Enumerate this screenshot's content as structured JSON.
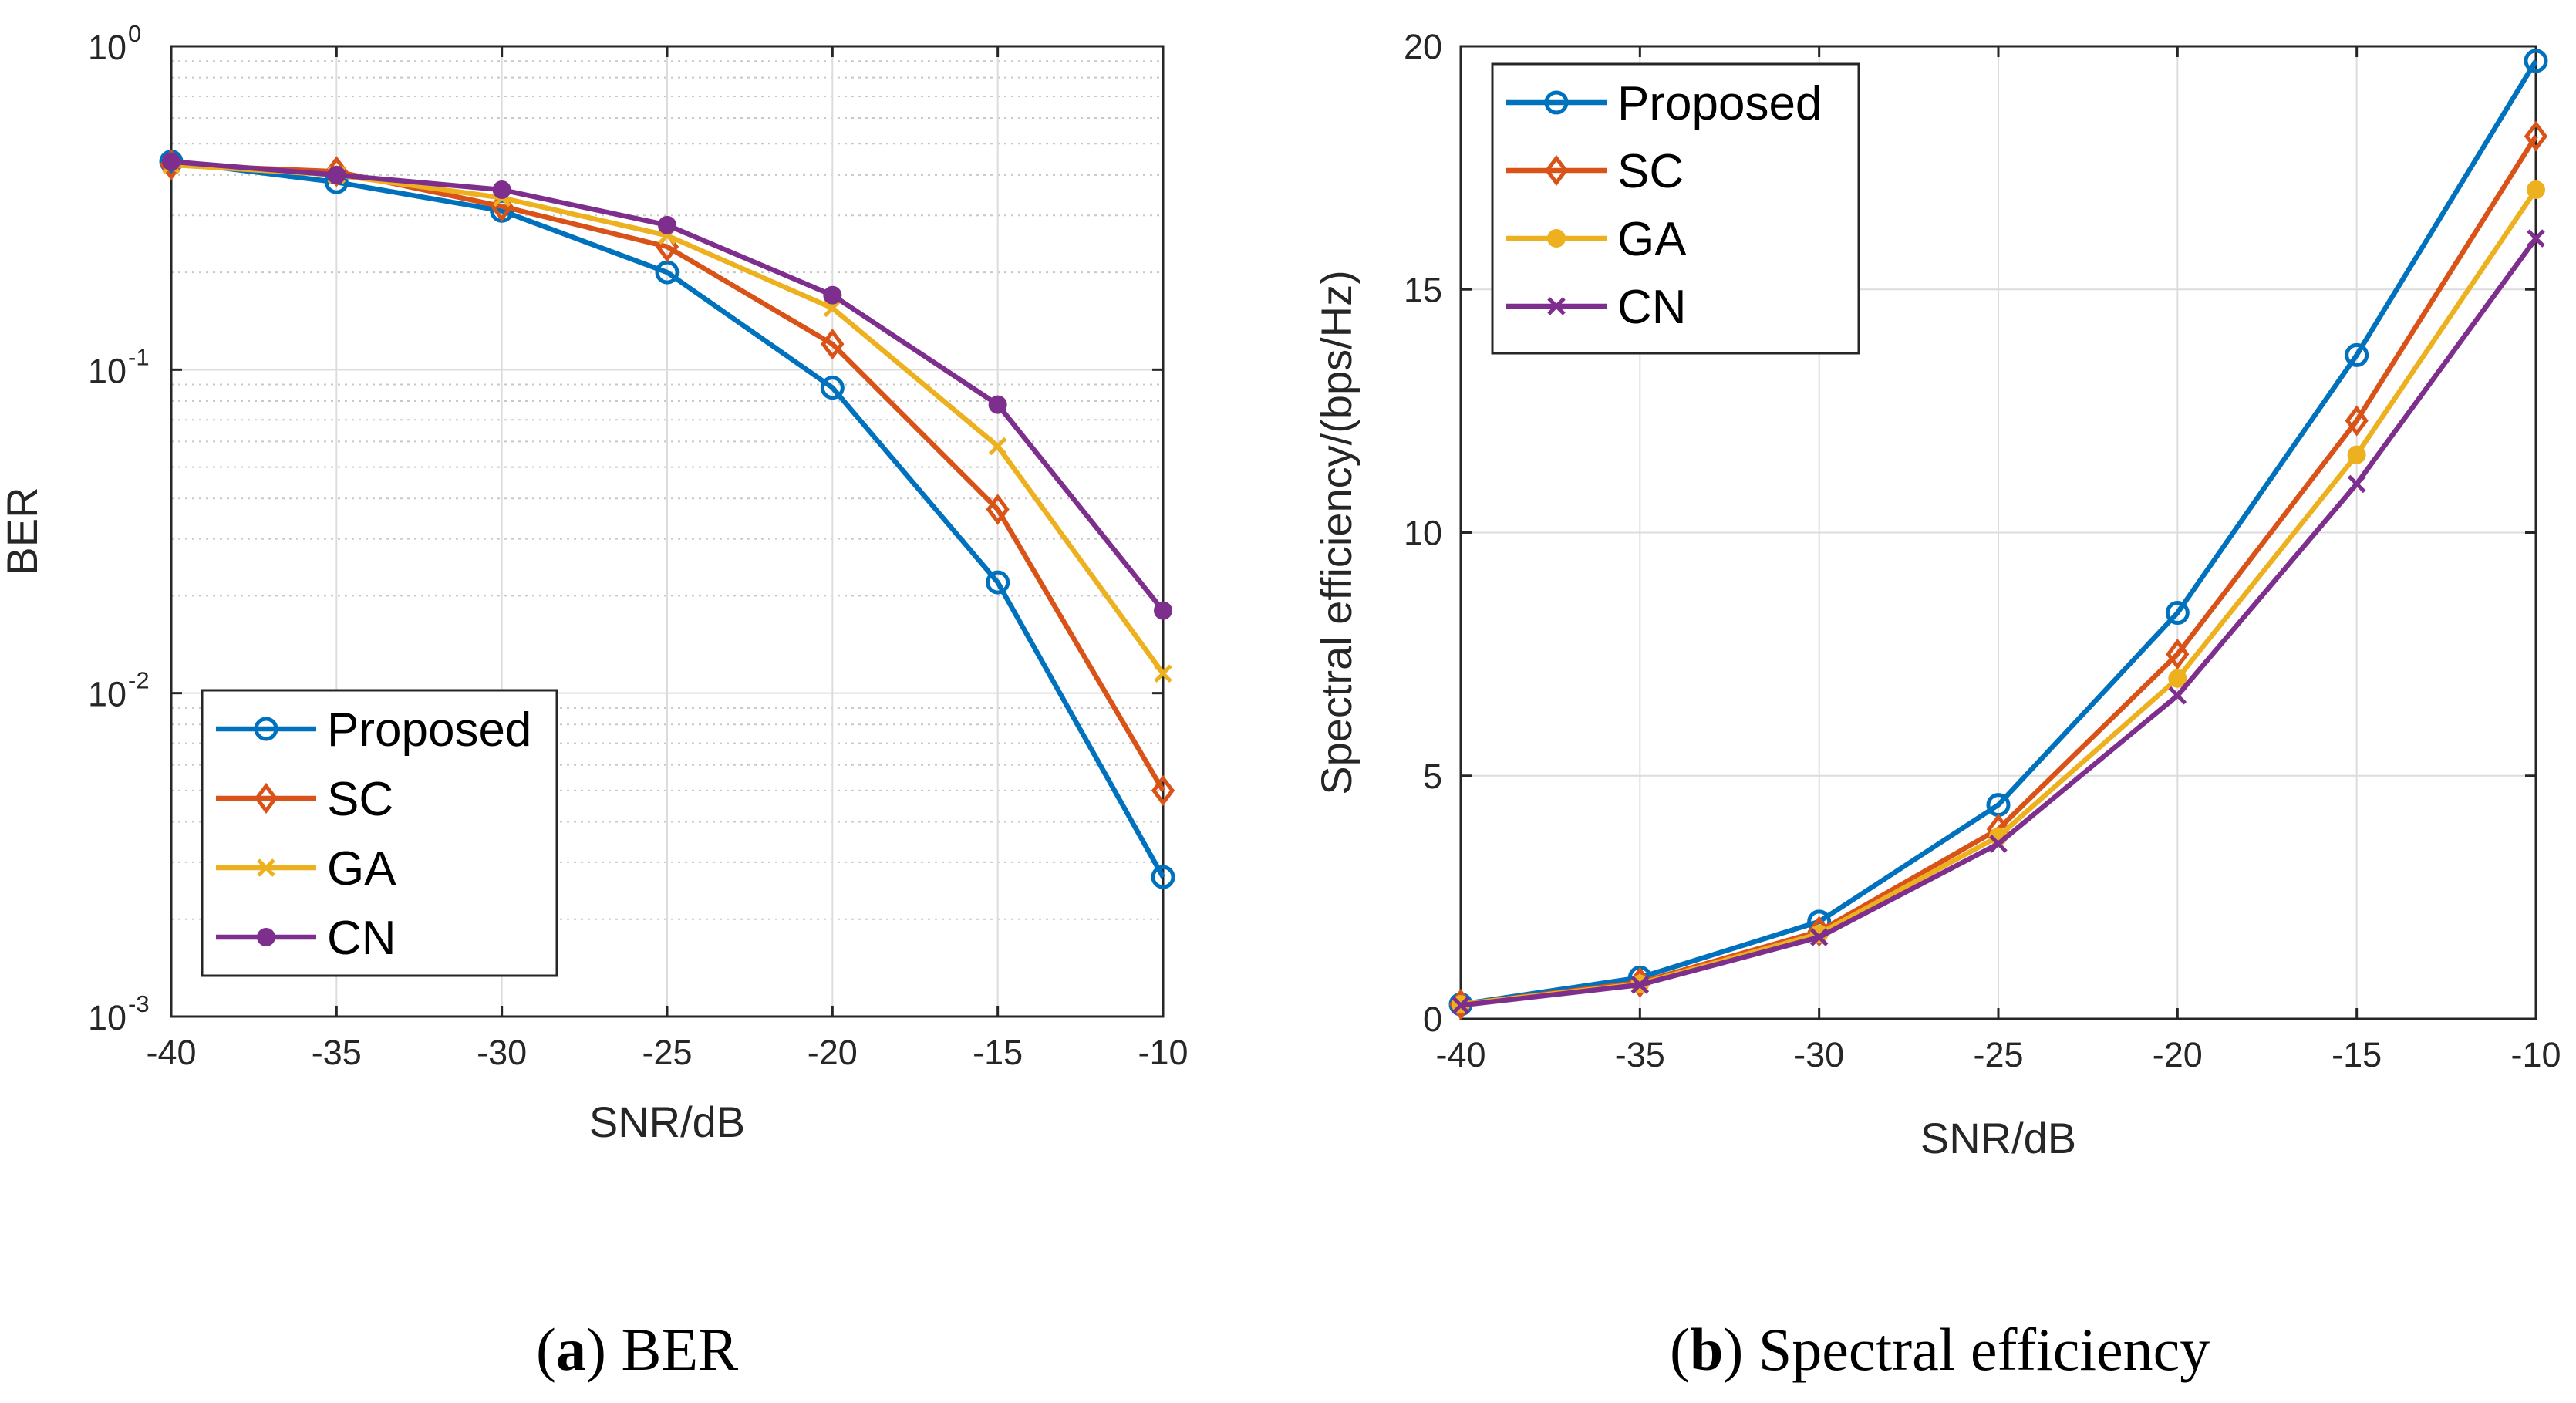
{
  "chart_data": [
    {
      "type": "line",
      "panel_label": "a",
      "caption": "BER",
      "xlabel": "SNR/dB",
      "ylabel": "BER",
      "yscale": "log",
      "xlim": [
        -40,
        -10
      ],
      "ylim": [
        0.001,
        1
      ],
      "xticks": [
        -40,
        -35,
        -30,
        -25,
        -20,
        -15,
        -10
      ],
      "yticks": [
        {
          "value": 0.001,
          "base": "10",
          "exp": "-3"
        },
        {
          "value": 0.01,
          "base": "10",
          "exp": "-2"
        },
        {
          "value": 0.1,
          "base": "10",
          "exp": "-1"
        },
        {
          "value": 1,
          "base": "10",
          "exp": "0"
        }
      ],
      "grid": true,
      "legend_position": "bottom-left",
      "categories": [
        -40,
        -35,
        -30,
        -25,
        -20,
        -15,
        -10
      ],
      "series": [
        {
          "name": "Proposed",
          "color": "#0072BD",
          "marker": "circle-open",
          "values": [
            0.44,
            0.38,
            0.31,
            0.2,
            0.088,
            0.022,
            0.0027
          ]
        },
        {
          "name": "SC",
          "color": "#D95319",
          "marker": "diamond-open",
          "values": [
            0.43,
            0.41,
            0.32,
            0.24,
            0.12,
            0.037,
            0.005
          ]
        },
        {
          "name": "GA",
          "color": "#EDB120",
          "marker": "x",
          "values": [
            0.43,
            0.4,
            0.34,
            0.26,
            0.155,
            0.058,
            0.0115
          ]
        },
        {
          "name": "CN",
          "color": "#7E2F8E",
          "marker": "circle-filled",
          "values": [
            0.44,
            0.4,
            0.36,
            0.28,
            0.17,
            0.078,
            0.018
          ]
        }
      ]
    },
    {
      "type": "line",
      "panel_label": "b",
      "caption": "Spectral efficiency",
      "xlabel": "SNR/dB",
      "ylabel": "Spectral efficiency/(bps/Hz)",
      "yscale": "linear",
      "xlim": [
        -40,
        -10
      ],
      "ylim": [
        0,
        20
      ],
      "xticks": [
        -40,
        -35,
        -30,
        -25,
        -20,
        -15,
        -10
      ],
      "yticks": [
        0,
        5,
        10,
        15,
        20
      ],
      "grid": true,
      "legend_position": "top-left",
      "categories": [
        -40,
        -35,
        -30,
        -25,
        -20,
        -15,
        -10
      ],
      "series": [
        {
          "name": "Proposed",
          "color": "#0072BD",
          "marker": "circle-open",
          "values": [
            0.3,
            0.85,
            2.0,
            4.4,
            8.35,
            13.65,
            19.7
          ]
        },
        {
          "name": "SC",
          "color": "#D95319",
          "marker": "diamond-open",
          "values": [
            0.3,
            0.75,
            1.8,
            3.9,
            7.5,
            12.3,
            18.15
          ]
        },
        {
          "name": "GA",
          "color": "#EDB120",
          "marker": "circle-filled",
          "values": [
            0.3,
            0.72,
            1.75,
            3.75,
            7.0,
            11.6,
            17.05
          ]
        },
        {
          "name": "CN",
          "color": "#7E2F8E",
          "marker": "x",
          "values": [
            0.28,
            0.7,
            1.68,
            3.6,
            6.65,
            11.0,
            16.05
          ]
        }
      ]
    }
  ]
}
